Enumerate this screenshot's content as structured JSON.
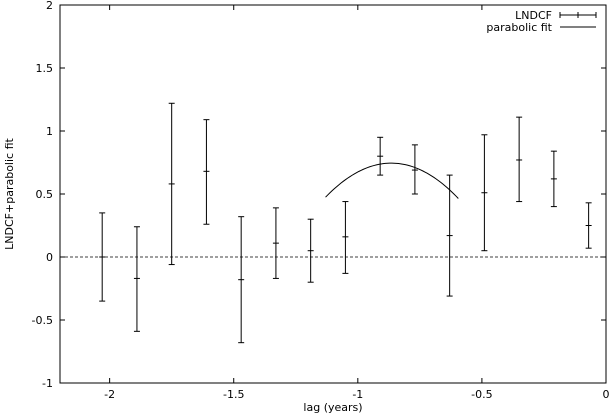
{
  "chart_data": {
    "type": "scatter",
    "xlabel": "lag (years)",
    "ylabel": "LNDCF+parabolic fit",
    "xlim": [
      -2.2,
      0
    ],
    "ylim": [
      -1,
      2
    ],
    "x_ticks": [
      -2,
      -1.5,
      -1,
      -0.5,
      0
    ],
    "x_tick_labels": [
      "-2",
      "-1.5",
      "-1",
      "-0.5",
      "0"
    ],
    "y_ticks": [
      -1,
      -0.5,
      0,
      0.5,
      1,
      1.5,
      2
    ],
    "y_tick_labels": [
      "-1",
      "-0.5",
      "0",
      "0.5",
      "1",
      "1.5",
      "2"
    ],
    "grid": false,
    "legend_position": "top-right",
    "zero_line": true,
    "series": [
      {
        "name": "LNDCF",
        "style": "errorbars",
        "color": "#000000",
        "points": [
          {
            "x": -2.03,
            "y": 0.0,
            "ylow": -0.35,
            "yhigh": 0.35
          },
          {
            "x": -1.89,
            "y": -0.17,
            "ylow": -0.59,
            "yhigh": 0.24
          },
          {
            "x": -1.75,
            "y": 0.58,
            "ylow": -0.06,
            "yhigh": 1.22
          },
          {
            "x": -1.61,
            "y": 0.68,
            "ylow": 0.26,
            "yhigh": 1.09
          },
          {
            "x": -1.47,
            "y": -0.18,
            "ylow": -0.68,
            "yhigh": 0.32
          },
          {
            "x": -1.33,
            "y": 0.11,
            "ylow": -0.17,
            "yhigh": 0.39
          },
          {
            "x": -1.19,
            "y": 0.05,
            "ylow": -0.2,
            "yhigh": 0.3
          },
          {
            "x": -1.05,
            "y": 0.16,
            "ylow": -0.13,
            "yhigh": 0.44
          },
          {
            "x": -0.91,
            "y": 0.8,
            "ylow": 0.65,
            "yhigh": 0.95
          },
          {
            "x": -0.77,
            "y": 0.69,
            "ylow": 0.5,
            "yhigh": 0.89
          },
          {
            "x": -0.63,
            "y": 0.17,
            "ylow": -0.31,
            "yhigh": 0.65
          },
          {
            "x": -0.49,
            "y": 0.51,
            "ylow": 0.05,
            "yhigh": 0.97
          },
          {
            "x": -0.35,
            "y": 0.77,
            "ylow": 0.44,
            "yhigh": 1.11
          },
          {
            "x": -0.21,
            "y": 0.62,
            "ylow": 0.4,
            "yhigh": 0.84
          },
          {
            "x": -0.07,
            "y": 0.25,
            "ylow": 0.07,
            "yhigh": 0.43
          }
        ]
      },
      {
        "name": "parabolic fit",
        "style": "line",
        "color": "#000000",
        "fit": {
          "form": "a*(x-h)^2+k",
          "a": -3.85,
          "h": -0.865,
          "k": 0.745
        },
        "x_range": [
          -1.13,
          -0.595
        ]
      }
    ]
  }
}
